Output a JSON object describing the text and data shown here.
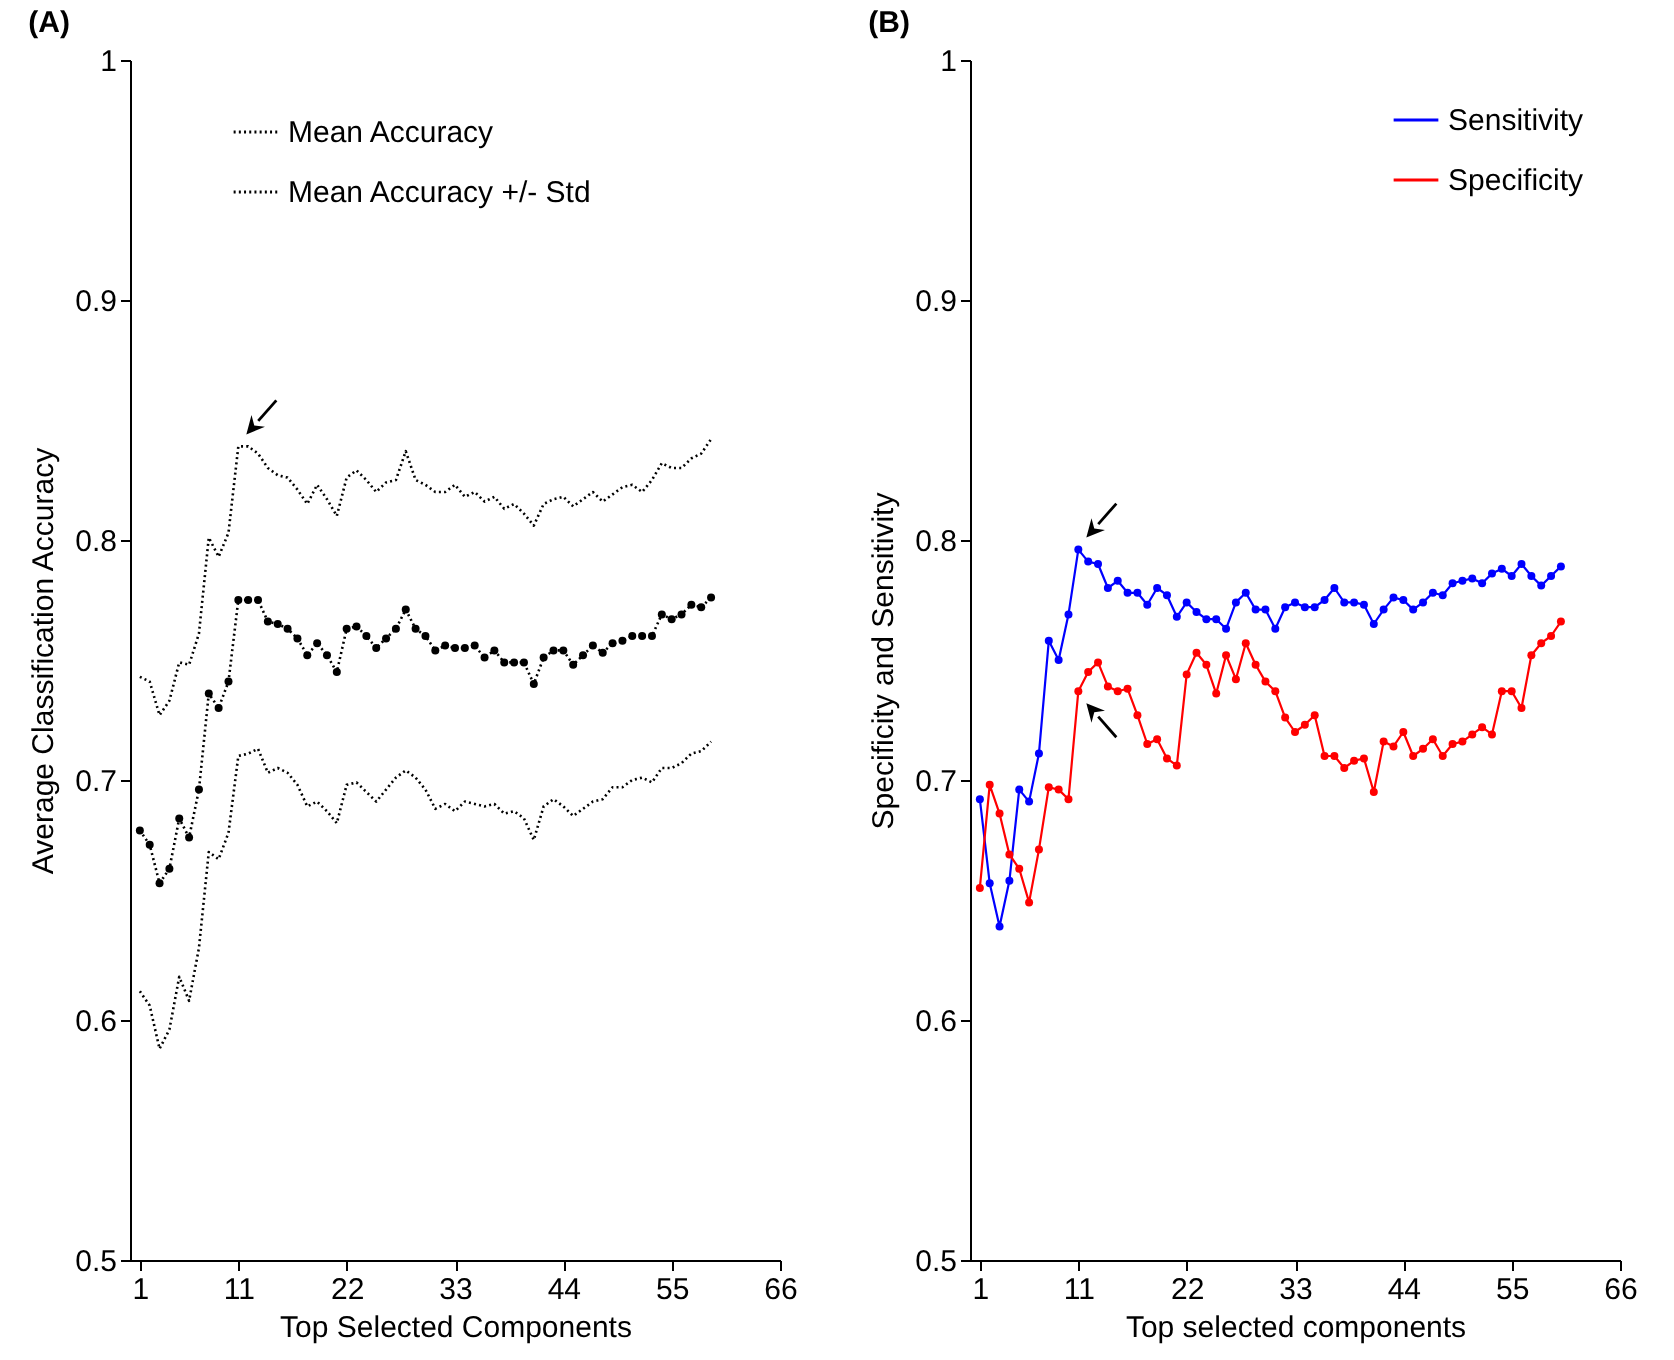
{
  "chart_data": [
    {
      "type": "line",
      "title": "(A)",
      "xlabel": "Top Selected Components",
      "ylabel": "Average Classification Accuracy",
      "x": [
        1,
        2,
        3,
        4,
        5,
        6,
        7,
        8,
        9,
        10,
        11,
        12,
        13,
        14,
        15,
        16,
        17,
        18,
        19,
        20,
        21,
        22,
        23,
        24,
        25,
        26,
        27,
        28,
        29,
        30,
        31,
        32,
        33,
        34,
        35,
        36,
        37,
        38,
        39,
        40,
        41,
        42,
        43,
        44,
        45,
        46,
        47,
        48,
        49,
        50,
        51,
        52,
        53,
        54,
        55,
        56,
        57,
        58,
        59
      ],
      "xlim": [
        0,
        66
      ],
      "xticks": [
        1,
        11,
        22,
        33,
        44,
        55,
        66
      ],
      "ylim": [
        0.5,
        1
      ],
      "yticks": [
        0.5,
        0.6,
        0.7,
        0.8,
        0.9,
        1
      ],
      "legend": "top",
      "line_style": "dotted",
      "series": [
        {
          "name": "Mean Accuracy",
          "color": "#000000",
          "marker": "circle",
          "values": [
            0.679,
            0.673,
            0.657,
            0.663,
            0.684,
            0.676,
            0.696,
            0.736,
            0.73,
            0.741,
            0.775,
            0.775,
            0.775,
            0.766,
            0.765,
            0.763,
            0.759,
            0.752,
            0.757,
            0.752,
            0.745,
            0.763,
            0.764,
            0.76,
            0.755,
            0.759,
            0.763,
            0.771,
            0.763,
            0.76,
            0.754,
            0.756,
            0.755,
            0.755,
            0.756,
            0.751,
            0.754,
            0.749,
            0.749,
            0.749,
            0.74,
            0.751,
            0.754,
            0.754,
            0.748,
            0.752,
            0.756,
            0.753,
            0.757,
            0.758,
            0.76,
            0.76,
            0.76,
            0.769,
            0.767,
            0.769,
            0.773,
            0.772,
            0.776
          ]
        },
        {
          "name": "Mean Accuracy +/- Std",
          "color": "#000000",
          "marker": "none",
          "values": [
            0.743,
            0.741,
            0.727,
            0.733,
            0.749,
            0.748,
            0.761,
            0.801,
            0.793,
            0.803,
            0.839,
            0.839,
            0.836,
            0.83,
            0.827,
            0.826,
            0.821,
            0.815,
            0.823,
            0.817,
            0.81,
            0.826,
            0.829,
            0.825,
            0.82,
            0.824,
            0.825,
            0.837,
            0.825,
            0.823,
            0.82,
            0.82,
            0.823,
            0.818,
            0.82,
            0.816,
            0.818,
            0.813,
            0.815,
            0.811,
            0.806,
            0.815,
            0.817,
            0.818,
            0.814,
            0.817,
            0.82,
            0.816,
            0.819,
            0.822,
            0.823,
            0.82,
            0.825,
            0.832,
            0.83,
            0.83,
            0.834,
            0.836,
            0.842
          ]
        },
        {
          "color": "#000000",
          "marker": "none",
          "values": [
            0.612,
            0.606,
            0.588,
            0.596,
            0.618,
            0.608,
            0.63,
            0.67,
            0.667,
            0.678,
            0.71,
            0.711,
            0.713,
            0.703,
            0.705,
            0.703,
            0.698,
            0.689,
            0.691,
            0.687,
            0.682,
            0.698,
            0.699,
            0.695,
            0.691,
            0.696,
            0.701,
            0.704,
            0.701,
            0.696,
            0.688,
            0.69,
            0.687,
            0.691,
            0.69,
            0.689,
            0.69,
            0.686,
            0.687,
            0.684,
            0.675,
            0.689,
            0.692,
            0.689,
            0.685,
            0.688,
            0.691,
            0.692,
            0.697,
            0.697,
            0.7,
            0.701,
            0.699,
            0.705,
            0.705,
            0.707,
            0.711,
            0.712,
            0.716
          ]
        }
      ]
    },
    {
      "type": "line",
      "title": "(B)",
      "xlabel": "Top selected components",
      "ylabel": "Specificity and Sensitivity",
      "x": [
        1,
        2,
        3,
        4,
        5,
        6,
        7,
        8,
        9,
        10,
        11,
        12,
        13,
        14,
        15,
        16,
        17,
        18,
        19,
        20,
        21,
        22,
        23,
        24,
        25,
        26,
        27,
        28,
        29,
        30,
        31,
        32,
        33,
        34,
        35,
        36,
        37,
        38,
        39,
        40,
        41,
        42,
        43,
        44,
        45,
        46,
        47,
        48,
        49,
        50,
        51,
        52,
        53,
        54,
        55,
        56,
        57,
        58,
        59,
        60
      ],
      "xlim": [
        0,
        66
      ],
      "xticks": [
        1,
        11,
        22,
        33,
        44,
        55,
        66
      ],
      "ylim": [
        0.5,
        1
      ],
      "yticks": [
        0.5,
        0.6,
        0.7,
        0.8,
        0.9,
        1
      ],
      "legend": "top right",
      "line_style": "solid",
      "marker": "circle",
      "series": [
        {
          "name": "Sensitivity",
          "color": "#0000ff",
          "values": [
            0.692,
            0.657,
            0.639,
            0.658,
            0.696,
            0.691,
            0.711,
            0.758,
            0.75,
            0.769,
            0.796,
            0.791,
            0.79,
            0.78,
            0.783,
            0.778,
            0.778,
            0.773,
            0.78,
            0.777,
            0.768,
            0.774,
            0.77,
            0.767,
            0.767,
            0.763,
            0.774,
            0.778,
            0.771,
            0.771,
            0.763,
            0.772,
            0.774,
            0.772,
            0.772,
            0.775,
            0.78,
            0.774,
            0.774,
            0.773,
            0.765,
            0.771,
            0.776,
            0.775,
            0.771,
            0.774,
            0.778,
            0.777,
            0.782,
            0.783,
            0.784,
            0.782,
            0.786,
            0.788,
            0.785,
            0.79,
            0.785,
            0.781,
            0.785,
            0.789
          ]
        },
        {
          "name": "Specificity",
          "color": "#ff0000",
          "values": [
            0.655,
            0.698,
            0.686,
            0.669,
            0.663,
            0.649,
            0.671,
            0.697,
            0.696,
            0.692,
            0.737,
            0.745,
            0.749,
            0.739,
            0.737,
            0.738,
            0.727,
            0.715,
            0.717,
            0.709,
            0.706,
            0.744,
            0.753,
            0.748,
            0.736,
            0.752,
            0.742,
            0.757,
            0.748,
            0.741,
            0.737,
            0.726,
            0.72,
            0.723,
            0.727,
            0.71,
            0.71,
            0.705,
            0.708,
            0.709,
            0.695,
            0.716,
            0.714,
            0.72,
            0.71,
            0.713,
            0.717,
            0.71,
            0.715,
            0.716,
            0.719,
            0.722,
            0.719,
            0.737,
            0.737,
            0.73,
            0.752,
            0.757,
            0.76,
            0.766
          ]
        }
      ]
    }
  ]
}
